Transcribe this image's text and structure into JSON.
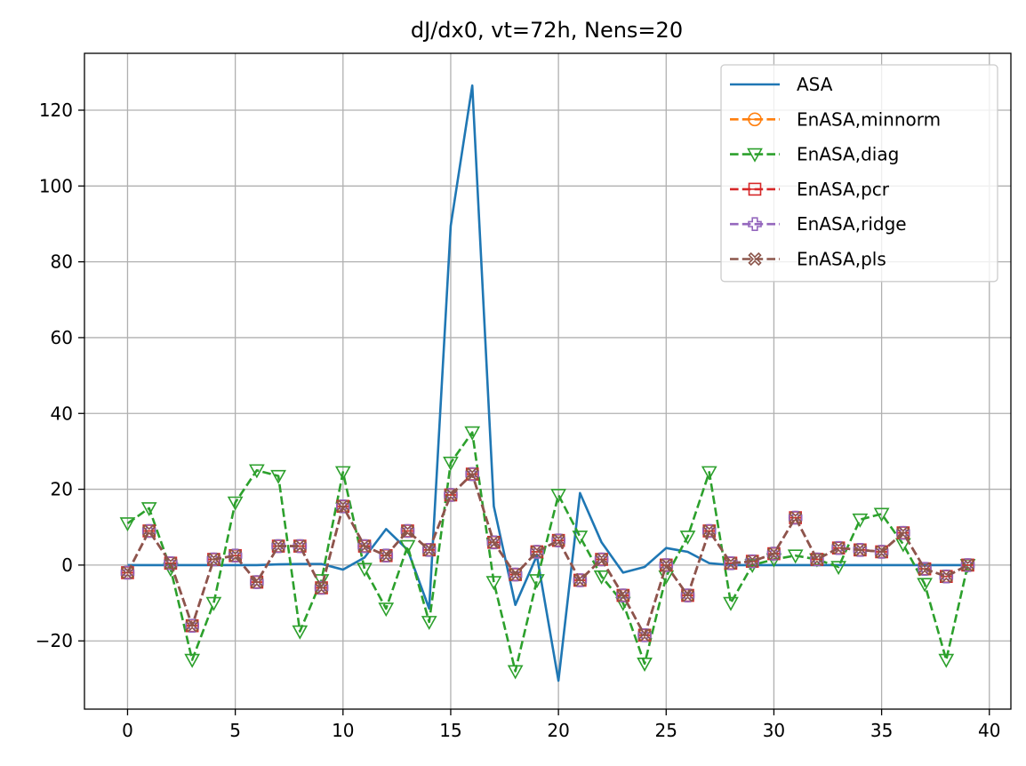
{
  "chart_data": {
    "type": "line",
    "title": "dJ/dx0, vt=72h, Nens=20",
    "xlabel": "",
    "ylabel": "",
    "xlim": [
      -2,
      41
    ],
    "ylim": [
      -38,
      135
    ],
    "xticks": [
      0,
      5,
      10,
      15,
      20,
      25,
      30,
      35,
      40
    ],
    "xtick_labels": [
      "0",
      "5",
      "10",
      "15",
      "20",
      "25",
      "30",
      "35",
      "40"
    ],
    "yticks": [
      -20,
      0,
      20,
      40,
      60,
      80,
      100,
      120
    ],
    "ytick_labels": [
      "−20",
      "0",
      "20",
      "40",
      "60",
      "80",
      "100",
      "120"
    ],
    "grid": true,
    "legend_position": "top-right",
    "x": [
      0,
      1,
      2,
      3,
      4,
      5,
      6,
      7,
      8,
      9,
      10,
      11,
      12,
      13,
      14,
      15,
      16,
      17,
      18,
      19,
      20,
      21,
      22,
      23,
      24,
      25,
      26,
      27,
      28,
      29,
      30,
      31,
      32,
      33,
      34,
      35,
      36,
      37,
      38,
      39
    ],
    "series": [
      {
        "name": "ASA",
        "color": "#1f77b4",
        "linestyle": "solid",
        "marker": "none",
        "values": [
          0,
          0,
          0,
          0,
          0,
          0,
          0,
          0.2,
          0.3,
          0.3,
          -1.2,
          2,
          9.5,
          4,
          -11.5,
          89.5,
          126.5,
          15.5,
          -10.5,
          2.5,
          -30.5,
          19,
          6,
          -2,
          -0.5,
          4.5,
          3.5,
          0.5,
          0,
          0,
          0,
          0,
          0,
          0,
          0,
          0,
          0,
          0,
          0,
          0
        ]
      },
      {
        "name": "EnASA,minnorm",
        "color": "#ff7f0e",
        "linestyle": "dashed",
        "marker": "circle-minus",
        "values": [
          -2,
          9,
          0.5,
          -16,
          1.5,
          2.5,
          -4.5,
          5,
          5,
          -6,
          15.5,
          5,
          2.5,
          9,
          4,
          18.5,
          24,
          6,
          -2.5,
          3.5,
          6.5,
          -4,
          1.5,
          -8,
          -18.5,
          0,
          -8,
          9,
          0.5,
          1,
          3,
          12.5,
          1.5,
          4.5,
          4,
          3.5,
          8.5,
          -1,
          -3,
          0
        ]
      },
      {
        "name": "EnASA,diag",
        "color": "#2ca02c",
        "linestyle": "dashed",
        "marker": "triangle-down",
        "values": [
          11,
          15,
          -1,
          -25,
          -10,
          16.5,
          25,
          23.5,
          -17.5,
          -4,
          24.5,
          -1,
          -11.5,
          5,
          -15,
          27,
          35,
          -4.5,
          -28,
          -4,
          18.5,
          7.5,
          -3,
          -10,
          -26,
          -3,
          7.5,
          24.5,
          -10,
          0,
          1.5,
          2.5,
          1.5,
          -0.5,
          12,
          13.5,
          5.5,
          -5,
          -25,
          0
        ]
      },
      {
        "name": "EnASA,pcr",
        "color": "#d62728",
        "linestyle": "dashed",
        "marker": "square-minus",
        "values": [
          -2,
          9,
          0.5,
          -16,
          1.5,
          2.5,
          -4.5,
          5,
          5,
          -6,
          15.5,
          5,
          2.5,
          9,
          4,
          18.5,
          24,
          6,
          -2.5,
          3.5,
          6.5,
          -4,
          1.5,
          -8,
          -18.5,
          0,
          -8,
          9,
          0.5,
          1,
          3,
          12.5,
          1.5,
          4.5,
          4,
          3.5,
          8.5,
          -1,
          -3,
          0
        ]
      },
      {
        "name": "EnASA,ridge",
        "color": "#9467bd",
        "linestyle": "dashed",
        "marker": "plus-filled",
        "values": [
          -2,
          9,
          0.5,
          -16,
          1.5,
          2.5,
          -4.5,
          5,
          5,
          -6,
          15.5,
          5,
          2.5,
          9,
          4,
          18.5,
          24,
          6,
          -2.5,
          3.5,
          6.5,
          -4,
          1.5,
          -8,
          -18.5,
          0,
          -8,
          9,
          0.5,
          1,
          3,
          12.5,
          1.5,
          4.5,
          4,
          3.5,
          8.5,
          -1,
          -3,
          0
        ]
      },
      {
        "name": "EnASA,pls",
        "color": "#8c564b",
        "linestyle": "dashed",
        "marker": "x-filled",
        "values": [
          -2,
          9,
          0.5,
          -16,
          1.5,
          2.5,
          -4.5,
          5,
          5,
          -6,
          15.5,
          5,
          2.5,
          9,
          4,
          18.5,
          24,
          6,
          -2.5,
          3.5,
          6.5,
          -4,
          1.5,
          -8,
          -18.5,
          0,
          -8,
          9,
          0.5,
          1,
          3,
          12.5,
          1.5,
          4.5,
          4,
          3.5,
          8.5,
          -1,
          -3,
          0
        ]
      }
    ]
  }
}
